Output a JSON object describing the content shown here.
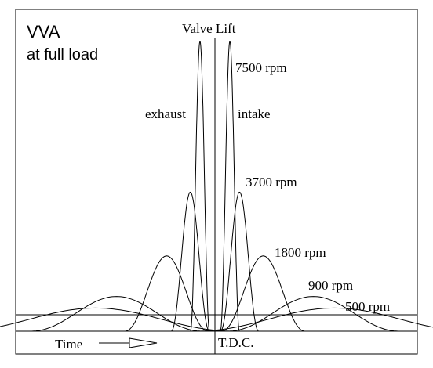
{
  "corner_label": {
    "line1": "VVA",
    "line2": "at full load"
  },
  "axis_title": "Valve Lift",
  "x_label": "Time",
  "center_label": "T.D.C.",
  "side_labels": {
    "left": "exhaust",
    "right": "intake"
  },
  "speed_labels": [
    "7500 rpm",
    "3700 rpm",
    "1800 rpm",
    "900 rpm",
    "500 rpm"
  ],
  "diagram_data": {
    "type": "valve-lift-profiles",
    "curves": [
      {
        "rpm": "7500 rpm",
        "relative_lift": 1.0,
        "relative_width": 0.11
      },
      {
        "rpm": "3700 rpm",
        "relative_lift": 0.48,
        "relative_width": 0.22
      },
      {
        "rpm": "1800 rpm",
        "relative_lift": 0.26,
        "relative_width": 0.48
      },
      {
        "rpm": "900 rpm",
        "relative_lift": 0.12,
        "relative_width": 0.99
      },
      {
        "rpm": "500 rpm",
        "relative_lift": 0.08,
        "relative_width": 1.6
      }
    ],
    "symmetric_about": "T.D.C."
  }
}
